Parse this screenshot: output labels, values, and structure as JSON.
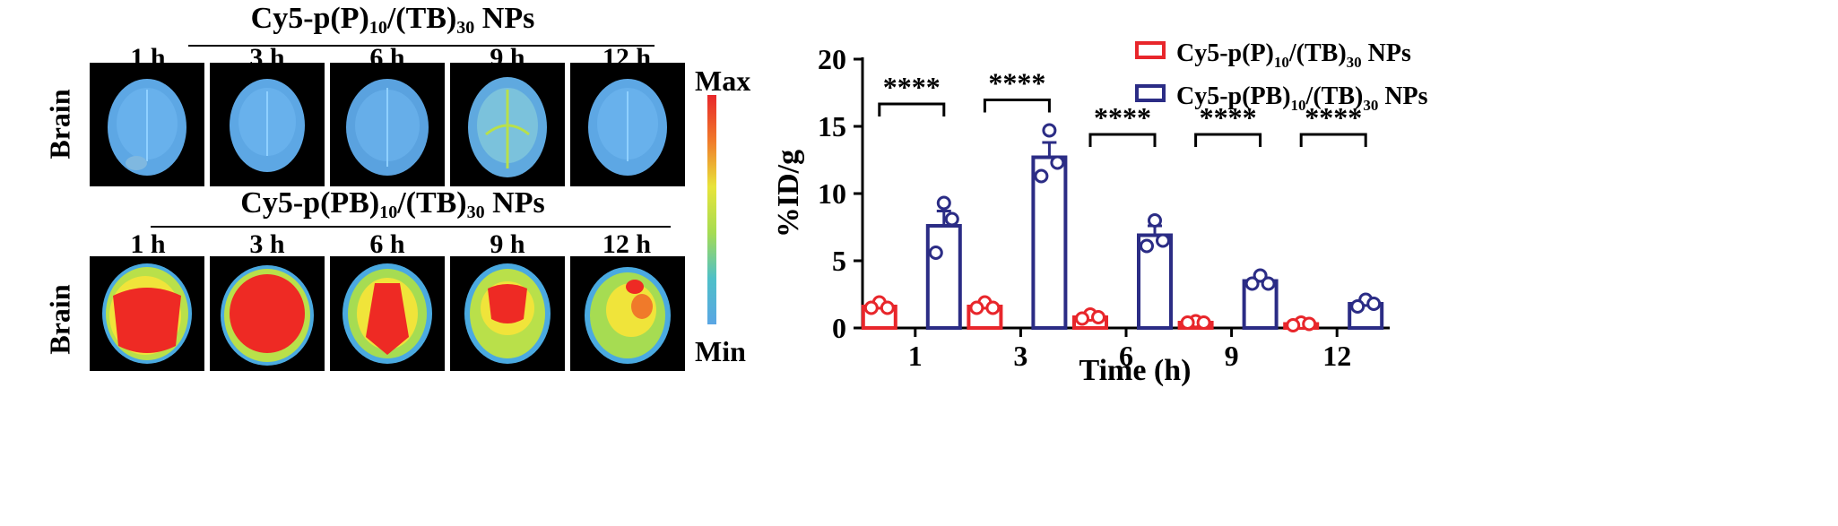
{
  "left_panel": {
    "row_label": "Brain",
    "groups": [
      {
        "name_main": "Cy5-p(P)",
        "sub1": "10",
        "mid": "/(TB)",
        "sub2": "30",
        "tail": " NPs",
        "timepoints": [
          "1 h",
          "3 h",
          "6 h",
          "9 h",
          "12 h"
        ]
      },
      {
        "name_main": "Cy5-p(PB)",
        "sub1": "10",
        "mid": "/(TB)",
        "sub2": "30",
        "tail": " NPs",
        "timepoints": [
          "1 h",
          "3 h",
          "6 h",
          "9 h",
          "12 h"
        ]
      }
    ],
    "colorbar": {
      "max_label": "Max",
      "min_label": "Min"
    }
  },
  "chart_data": {
    "type": "bar",
    "categories": [
      "1",
      "3",
      "6",
      "9",
      "12"
    ],
    "xlabel": "Time (h)",
    "ylabel": "%ID/g",
    "ylim": [
      0,
      20
    ],
    "yticks": [
      0,
      5,
      10,
      15,
      20
    ],
    "series": [
      {
        "name": "Cy5-p(P)10/(TB)30 NPs",
        "legend_main": "Cy5-p(P)",
        "legend_tail": "/(TB)",
        "sub1": "10",
        "sub2": "30",
        "legend_end": " NPs",
        "color": "#e8262b",
        "values": [
          1.6,
          1.6,
          0.8,
          0.4,
          0.3
        ],
        "errors": [
          0.2,
          0.2,
          0.1,
          0.05,
          0.05
        ],
        "points": [
          [
            1.9,
            1.5,
            1.5
          ],
          [
            1.9,
            1.5,
            1.5
          ],
          [
            1.0,
            0.7,
            0.8
          ],
          [
            0.5,
            0.4,
            0.4
          ],
          [
            0.4,
            0.2,
            0.3
          ]
        ]
      },
      {
        "name": "Cy5-p(PB)10/(TB)30 NPs",
        "legend_main": "Cy5-p(PB)",
        "legend_tail": "/(TB)",
        "sub1": "10",
        "sub2": "30",
        "legend_end": " NPs",
        "color": "#2b2c85",
        "values": [
          7.6,
          12.7,
          6.9,
          3.5,
          1.8
        ],
        "errors": [
          1.1,
          1.1,
          0.7,
          0.25,
          0.2
        ],
        "points": [
          [
            9.3,
            5.6,
            8.1
          ],
          [
            14.7,
            11.3,
            12.3
          ],
          [
            8.0,
            6.1,
            6.5
          ],
          [
            3.9,
            3.3,
            3.3
          ],
          [
            2.1,
            1.6,
            1.8
          ]
        ]
      }
    ],
    "significance": [
      "****",
      "****",
      "****",
      "****",
      "****"
    ],
    "legend_position": "top-right",
    "grid": false
  }
}
